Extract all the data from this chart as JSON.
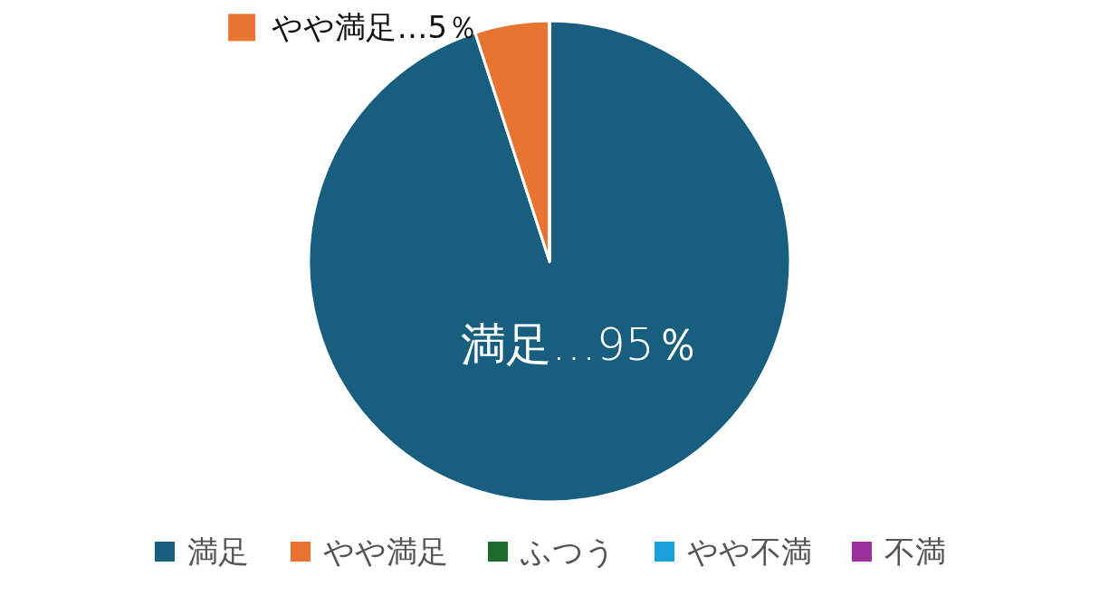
{
  "chart_data": {
    "type": "pie",
    "categories": [
      "満足",
      "やや満足",
      "ふつう",
      "やや不満",
      "不満"
    ],
    "values": [
      95,
      5,
      0,
      0,
      0
    ],
    "colors": [
      "#175e7f",
      "#e87432",
      "#1e6b2a",
      "#1aa0d8",
      "#9b2f9b"
    ],
    "value_labels": [
      "満足…95％",
      "やや満足…5％",
      null,
      null,
      null
    ],
    "legend": "bottom"
  }
}
